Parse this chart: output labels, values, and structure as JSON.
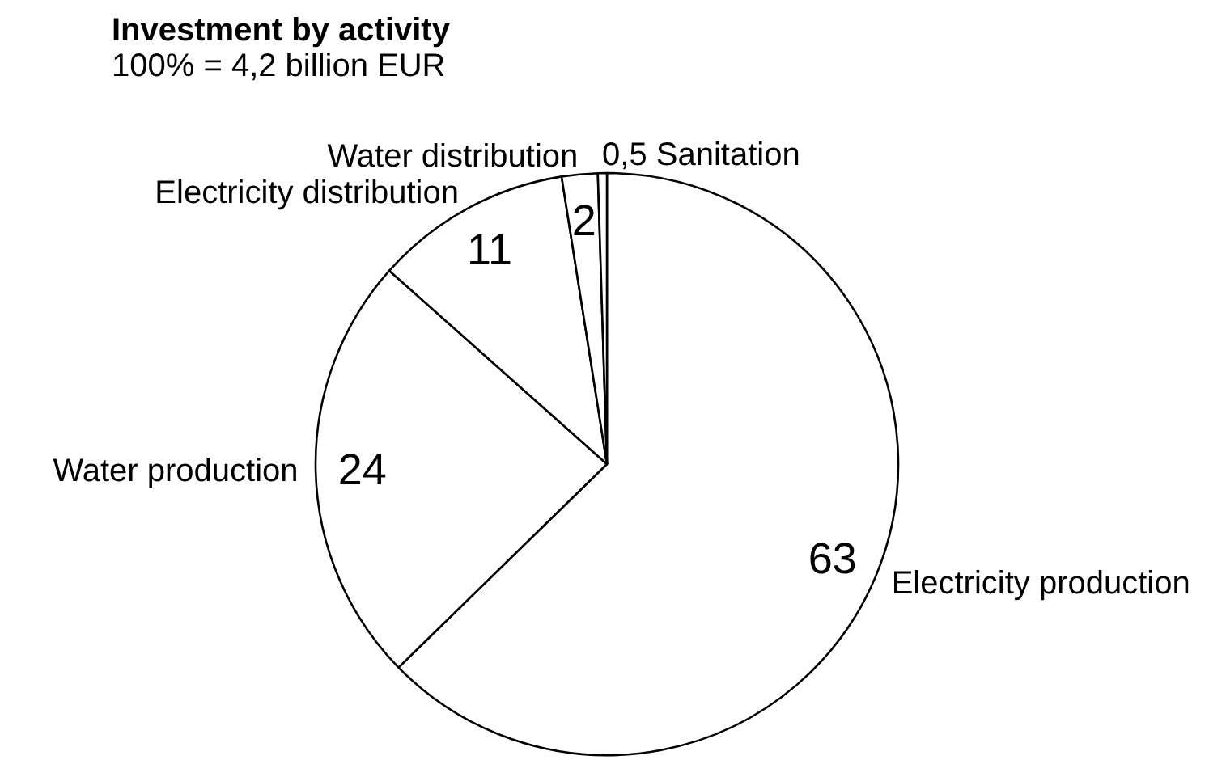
{
  "chart_data": {
    "type": "pie",
    "title": "Investment by activity",
    "subtitle": "100% = 4,2 billion EUR",
    "categories": [
      "Electricity production",
      "Water production",
      "Electricity distribution",
      "Water distribution",
      "Sanitation"
    ],
    "values": [
      63,
      24,
      11,
      2,
      0.5
    ],
    "colors": [
      "#ffffff",
      "#ffffff",
      "#ffffff",
      "#ffffff",
      "#ffffff"
    ],
    "value_labels": [
      "63",
      "24",
      "11",
      "2",
      "0,5"
    ]
  }
}
